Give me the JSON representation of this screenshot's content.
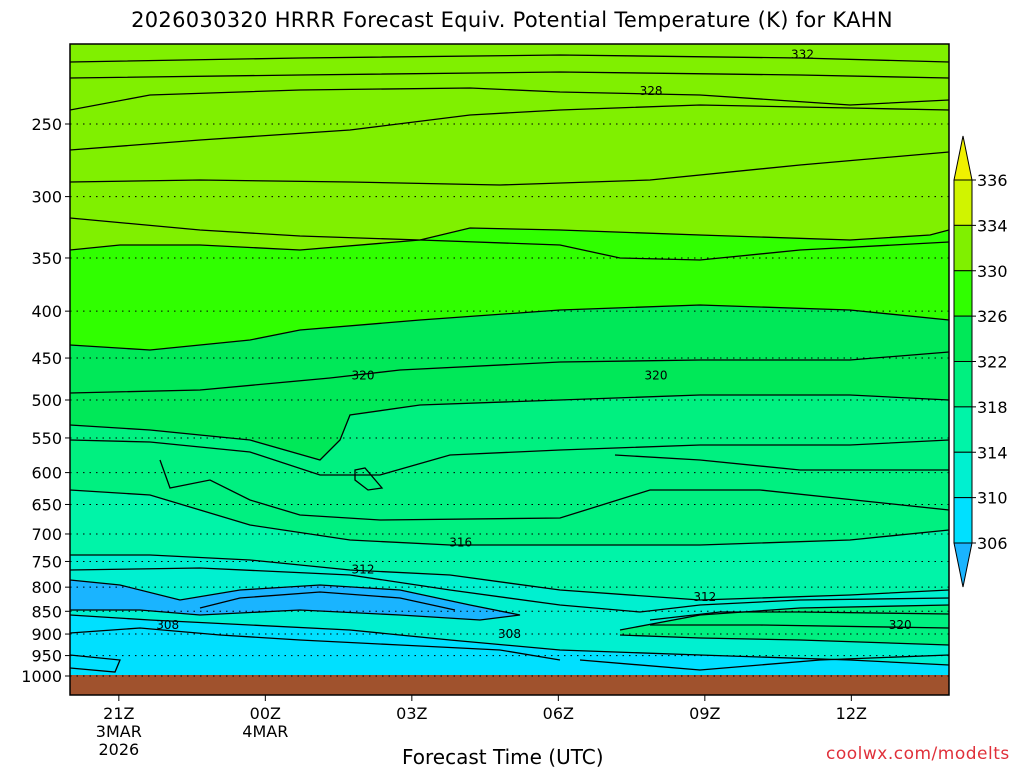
{
  "title": "2026030320 HRRR Forecast Equiv. Potential Temperature (K) for KAHN",
  "credit": "coolwx.com/modelts",
  "chart_data": {
    "type": "heatmap",
    "title": "2026030320 HRRR Forecast Equiv. Potential Temperature (K) for KAHN",
    "xlabel": "Forecast Time (UTC)",
    "ylabel": "",
    "y_scale": "log-pressure",
    "y_ticks": [
      250,
      300,
      350,
      400,
      450,
      500,
      550,
      600,
      650,
      700,
      750,
      800,
      850,
      900,
      950,
      1000
    ],
    "ylim": [
      1000,
      200
    ],
    "x_ticks": [
      {
        "hour": 1,
        "label": "21Z",
        "sub1": "3MAR",
        "sub2": "2026"
      },
      {
        "hour": 4,
        "label": "00Z",
        "sub1": "4MAR",
        "sub2": ""
      },
      {
        "hour": 7,
        "label": "03Z",
        "sub1": "",
        "sub2": ""
      },
      {
        "hour": 10,
        "label": "06Z",
        "sub1": "",
        "sub2": ""
      },
      {
        "hour": 13,
        "label": "09Z",
        "sub1": "",
        "sub2": ""
      },
      {
        "hour": 16,
        "label": "12Z",
        "sub1": "",
        "sub2": ""
      }
    ],
    "xlim": [
      0,
      18
    ],
    "grid": "dotted horizontal lines",
    "colorbar": {
      "levels": [
        306,
        310,
        314,
        318,
        322,
        326,
        330,
        334,
        336
      ],
      "labels": [
        "306",
        "310",
        "314",
        "318",
        "322",
        "326",
        "330",
        "334",
        "336"
      ],
      "colors": [
        "#1ab4ff",
        "#00e0ff",
        "#00f0d0",
        "#00f4a8",
        "#00f080",
        "#00e858",
        "#30ff00",
        "#80f000",
        "#d0f400",
        "#f0f000"
      ]
    },
    "contour_labels": [
      {
        "value": "332",
        "hour": 15.0,
        "pressure": 210
      },
      {
        "value": "328",
        "hour": 11.9,
        "pressure": 230
      },
      {
        "value": "320",
        "hour": 6.0,
        "pressure": 470
      },
      {
        "value": "320",
        "hour": 12.0,
        "pressure": 470
      },
      {
        "value": "316",
        "hour": 8.0,
        "pressure": 715
      },
      {
        "value": "312",
        "hour": 6.0,
        "pressure": 765
      },
      {
        "value": "312",
        "hour": 13.0,
        "pressure": 820
      },
      {
        "value": "308",
        "hour": 2.0,
        "pressure": 880
      },
      {
        "value": "308",
        "hour": 9.0,
        "pressure": 900
      },
      {
        "value": "320",
        "hour": 17.0,
        "pressure": 880
      }
    ],
    "ground_color": "#a0522d"
  }
}
